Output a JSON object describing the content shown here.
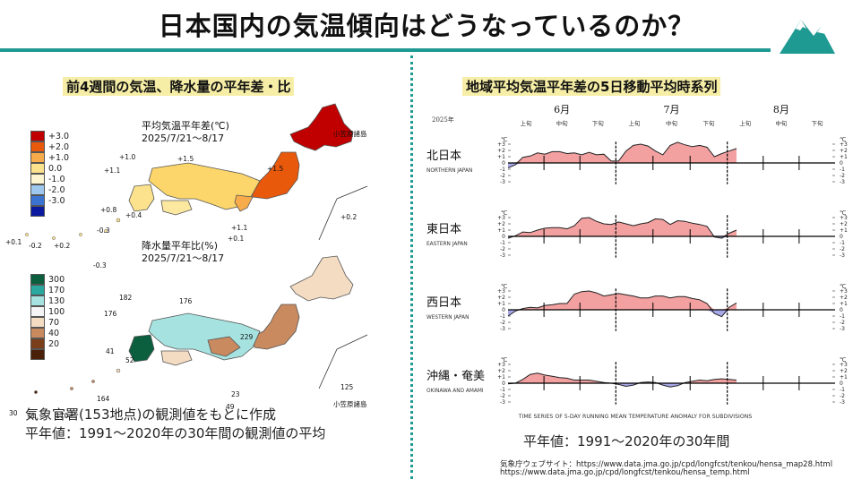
{
  "header": {
    "title": "日本国内の気温傾向はどうなっているのか？"
  },
  "left": {
    "subtitle": "前4週間の気温、降水量の平年差・比",
    "temp_map": {
      "title": "平均気温平年差(℃)",
      "period": "2025/7/21～8/17",
      "legend": [
        {
          "label": "+3.0",
          "color": "#c00000"
        },
        {
          "label": "+2.0",
          "color": "#e8590c"
        },
        {
          "label": "+1.0",
          "color": "#f7ab4a"
        },
        {
          "label": "0.0",
          "color": "#fce28c"
        },
        {
          "label": "-1.0",
          "color": "#fdf5cf"
        },
        {
          "label": "-2.0",
          "color": "#9ec8ee"
        },
        {
          "label": "-3.0",
          "color": "#3b74d0"
        },
        {
          "label": "",
          "color": "#0b1a9e"
        }
      ],
      "annotations": [
        "+1.0",
        "+1.5",
        "+1.1",
        "+1.5",
        "+0.8",
        "+0.4",
        "+0.2",
        "+1.1",
        "+0.1",
        "-0.3",
        "+0.1",
        "-0.2",
        "+0.2"
      ],
      "ogasawara": "小笠原諸島"
    },
    "precip_map": {
      "title": "降水量平年比(%)",
      "period": "2025/7/21～8/17",
      "legend": [
        {
          "label": "300",
          "color": "#0b5e3e"
        },
        {
          "label": "170",
          "color": "#2aa89f"
        },
        {
          "label": "130",
          "color": "#a6e3e0"
        },
        {
          "label": "100",
          "color": "#f4f4f4"
        },
        {
          "label": "70",
          "color": "#f4dcc3"
        },
        {
          "label": "40",
          "color": "#c98a5f"
        },
        {
          "label": "20",
          "color": "#7a3f1a"
        },
        {
          "label": "",
          "color": "#4a2008"
        }
      ],
      "annotations": [
        "-0.3",
        "182",
        "176",
        "176",
        "229",
        "41",
        "52",
        "23",
        "49",
        "164",
        "30",
        "71",
        "170",
        "125"
      ],
      "ogasawara": "小笠原諸島"
    },
    "notes": [
      "気象官署(153地点)の観測値をもとに作成",
      "平年値：1991～2020年の30年間の観測値の平均"
    ]
  },
  "right": {
    "subtitle": "地域平均気温平年差の5日移動平均時系列",
    "year_label": "2025年",
    "months": [
      "6月",
      "7月",
      "8月"
    ],
    "decades": [
      "上旬",
      "中旬",
      "下旬"
    ],
    "footer_en": "TIME SERIES OF 5-DAY RUNNING MEAN TEMPERATURE ANOMALY FOR SUBDIVISIONS",
    "normal_note": "平年値：1991～2020年の30年間",
    "source_lines": [
      "気象庁ウェブサイト：https://www.data.jma.go.jp/cpd/longfcst/tenkou/hensa_map28.html",
      "https://www.data.jma.go.jp/cpd/longfcst/tenkou/hensa_temp.html"
    ],
    "positive_color": "#f2a0a0",
    "negative_color": "#a8a8e8"
  },
  "chart_data": {
    "type": "area",
    "x_range": [
      "2025-06-01",
      "2025-08-31"
    ],
    "y_unit": "℃",
    "ylim": [
      -3,
      3
    ],
    "series": [
      {
        "name": "北日本",
        "name_en": "NORTHERN JAPAN",
        "values": [
          -0.8,
          -0.3,
          0.9,
          1.1,
          1.6,
          1.4,
          1.8,
          1.8,
          1.5,
          1.6,
          1.3,
          1.7,
          1.3,
          1.4,
          0.3,
          0.3,
          1.9,
          2.8,
          3.0,
          2.7,
          1.9,
          1.3,
          2.8,
          3.3,
          2.9,
          2.6,
          2.8,
          2.5,
          1.0,
          1.5,
          1.9,
          2.3
        ]
      },
      {
        "name": "東日本",
        "name_en": "EASTERN JAPAN",
        "values": [
          -0.3,
          0.1,
          0.7,
          0.6,
          1.0,
          1.3,
          1.4,
          1.4,
          1.2,
          1.7,
          2.9,
          3.0,
          2.4,
          2.0,
          1.9,
          2.3,
          2.0,
          1.7,
          2.0,
          2.2,
          2.8,
          2.7,
          1.9,
          2.5,
          2.4,
          2.1,
          1.9,
          1.6,
          -0.1,
          -0.3,
          0.5,
          1.0
        ]
      },
      {
        "name": "西日本",
        "name_en": "WESTERN JAPAN",
        "values": [
          -1.0,
          -0.2,
          0.2,
          0.4,
          0.3,
          0.7,
          0.8,
          1.0,
          1.0,
          2.5,
          2.9,
          3.0,
          2.7,
          2.2,
          2.4,
          2.6,
          2.4,
          2.2,
          1.9,
          1.9,
          2.2,
          2.2,
          1.9,
          2.1,
          2.1,
          1.8,
          1.6,
          1.0,
          -0.6,
          -1.1,
          0.4,
          1.1
        ]
      },
      {
        "name": "沖縄・奄美",
        "name_en": "OKINAWA AND AMAMI",
        "values": [
          -0.1,
          0.0,
          0.6,
          1.4,
          1.6,
          1.3,
          1.1,
          0.9,
          0.8,
          0.5,
          0.5,
          0.5,
          0.3,
          0.1,
          0.0,
          -0.2,
          -0.5,
          -0.3,
          0.1,
          0.2,
          0.1,
          -0.3,
          -0.6,
          -0.4,
          0.1,
          0.3,
          0.5,
          0.4,
          0.6,
          0.7,
          0.6,
          0.5
        ]
      }
    ]
  }
}
